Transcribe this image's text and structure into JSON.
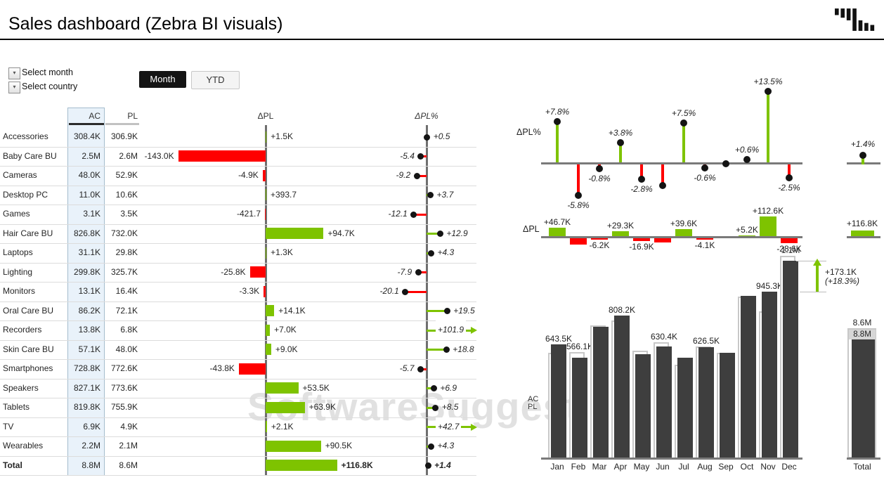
{
  "header": {
    "title": "Sales dashboard (Zebra BI visuals)"
  },
  "filters": [
    {
      "label": "Select month"
    },
    {
      "label": "Select country"
    }
  ],
  "view_toggle": {
    "options": [
      {
        "label": "Month",
        "selected": true
      },
      {
        "label": "YTD",
        "selected": false
      }
    ]
  },
  "watermark": "SoftwareSuggest",
  "colors": {
    "positive": "#7ec300",
    "negative": "#ff0000",
    "axis": "#6f6f6f",
    "ac_column": "#3e3e3e",
    "pl_outline": "#c8c8c8",
    "highlight_bg": "#e9f2fa",
    "highlight_border": "#a4bccd"
  },
  "chart_data": [
    {
      "id": "category-matrix",
      "type": "table",
      "columns": {
        "category": "",
        "ac": "AC",
        "pl": "PL",
        "dpl": "ΔPL",
        "dplpct": "ΔPL%"
      },
      "rows": [
        {
          "category": "Accessories",
          "ac": "308.4K",
          "pl": "306.9K",
          "dpl_label": "+1.5K",
          "dpl_k": 1.5,
          "dplpct_label": "+0.5",
          "dplpct": 0.5
        },
        {
          "category": "Baby Care BU",
          "ac": "2.5M",
          "pl": "2.6M",
          "dpl_label": "-143.0K",
          "dpl_k": -143.0,
          "dplpct_label": "-5.4",
          "dplpct": -5.4
        },
        {
          "category": "Cameras",
          "ac": "48.0K",
          "pl": "52.9K",
          "dpl_label": "-4.9K",
          "dpl_k": -4.9,
          "dplpct_label": "-9.2",
          "dplpct": -9.2
        },
        {
          "category": "Desktop PC",
          "ac": "11.0K",
          "pl": "10.6K",
          "dpl_label": "+393.7",
          "dpl_k": 0.3937,
          "dplpct_label": "+3.7",
          "dplpct": 3.7
        },
        {
          "category": "Games",
          "ac": "3.1K",
          "pl": "3.5K",
          "dpl_label": "-421.7",
          "dpl_k": -0.4217,
          "dplpct_label": "-12.1",
          "dplpct": -12.1
        },
        {
          "category": "Hair Care BU",
          "ac": "826.8K",
          "pl": "732.0K",
          "dpl_label": "+94.7K",
          "dpl_k": 94.7,
          "dplpct_label": "+12.9",
          "dplpct": 12.9
        },
        {
          "category": "Laptops",
          "ac": "31.1K",
          "pl": "29.8K",
          "dpl_label": "+1.3K",
          "dpl_k": 1.3,
          "dplpct_label": "+4.3",
          "dplpct": 4.3
        },
        {
          "category": "Lighting",
          "ac": "299.8K",
          "pl": "325.7K",
          "dpl_label": "-25.8K",
          "dpl_k": -25.8,
          "dplpct_label": "-7.9",
          "dplpct": -7.9
        },
        {
          "category": "Monitors",
          "ac": "13.1K",
          "pl": "16.4K",
          "dpl_label": "-3.3K",
          "dpl_k": -3.3,
          "dplpct_label": "-20.1",
          "dplpct": -20.1
        },
        {
          "category": "Oral Care BU",
          "ac": "86.2K",
          "pl": "72.1K",
          "dpl_label": "+14.1K",
          "dpl_k": 14.1,
          "dplpct_label": "+19.5",
          "dplpct": 19.5
        },
        {
          "category": "Recorders",
          "ac": "13.8K",
          "pl": "6.8K",
          "dpl_label": "+7.0K",
          "dpl_k": 7.0,
          "dplpct_label": "+101.9",
          "dplpct": 101.9,
          "overflow_arrow": true
        },
        {
          "category": "Skin Care BU",
          "ac": "57.1K",
          "pl": "48.0K",
          "dpl_label": "+9.0K",
          "dpl_k": 9.0,
          "dplpct_label": "+18.8",
          "dplpct": 18.8
        },
        {
          "category": "Smartphones",
          "ac": "728.8K",
          "pl": "772.6K",
          "dpl_label": "-43.8K",
          "dpl_k": -43.8,
          "dplpct_label": "-5.7",
          "dplpct": -5.7
        },
        {
          "category": "Speakers",
          "ac": "827.1K",
          "pl": "773.6K",
          "dpl_label": "+53.5K",
          "dpl_k": 53.5,
          "dplpct_label": "+6.9",
          "dplpct": 6.9
        },
        {
          "category": "Tablets",
          "ac": "819.8K",
          "pl": "755.9K",
          "dpl_label": "+63.9K",
          "dpl_k": 63.9,
          "dplpct_label": "+8.5",
          "dplpct": 8.5
        },
        {
          "category": "TV",
          "ac": "6.9K",
          "pl": "4.9K",
          "dpl_label": "+2.1K",
          "dpl_k": 2.1,
          "dplpct_label": "+42.7",
          "dplpct": 42.7,
          "overflow_arrow": true
        },
        {
          "category": "Wearables",
          "ac": "2.2M",
          "pl": "2.1M",
          "dpl_label": "+90.5K",
          "dpl_k": 90.5,
          "dplpct_label": "+4.3",
          "dplpct": 4.3
        },
        {
          "category": "Total",
          "ac": "8.8M",
          "pl": "8.6M",
          "dpl_label": "+116.8K",
          "dpl_k": 116.8,
          "dplpct_label": "+1.4",
          "dplpct": 1.4,
          "bold": true
        }
      ]
    },
    {
      "id": "monthly-dplpct",
      "type": "lollipop",
      "title": "ΔPL%",
      "categories": [
        "Jan",
        "Feb",
        "Mar",
        "Apr",
        "May",
        "Jun",
        "Jul",
        "Aug",
        "Sep",
        "Oct",
        "Nov",
        "Dec"
      ],
      "labels": [
        "+7.8%",
        "-5.8%",
        "-0.8%",
        "+3.8%",
        "-2.8%",
        "",
        "+7.5%",
        "-0.6%",
        "",
        "+0.6%",
        "+13.5%",
        "-2.5%"
      ],
      "values": [
        7.8,
        -5.8,
        -0.8,
        3.8,
        -2.8,
        -4.0,
        7.5,
        -0.6,
        0,
        0.6,
        13.5,
        -2.5
      ],
      "total": {
        "label": "+1.4%",
        "value": 1.4
      }
    },
    {
      "id": "monthly-dpl",
      "type": "bar",
      "title": "ΔPL",
      "labels": [
        "+46.7K",
        "",
        "-6.2K",
        "+29.3K",
        "-16.9K",
        "",
        "+39.6K",
        "-4.1K",
        "",
        "+5.2K",
        "+112.6K",
        "-28.6K"
      ],
      "values_k": [
        46.7,
        -35,
        -6.2,
        29.3,
        -16.9,
        -25,
        39.6,
        -4.1,
        0,
        5.2,
        112.6,
        -28.6
      ],
      "total": {
        "label": "+116.8K",
        "value_k": 116.8
      }
    },
    {
      "id": "monthly-acpl",
      "type": "column",
      "legend": [
        "AC",
        "PL"
      ],
      "labels": [
        "643.5K",
        "566.1K",
        "",
        "808.2K",
        "",
        "630.4K",
        "",
        "626.5K",
        "",
        "",
        "945.3K",
        "1.1M"
      ],
      "ac_k": [
        643.5,
        566.1,
        746,
        808.2,
        590,
        630.4,
        567,
        626.5,
        598,
        922,
        945.3,
        1118.4
      ],
      "pl_k": [
        596.8,
        601.1,
        752.2,
        778.9,
        606.9,
        655.4,
        527.4,
        630.6,
        598,
        916.8,
        832.7,
        1147
      ],
      "annotation": {
        "delta": "+173.1K",
        "pct": "(+18.3%)"
      },
      "total": {
        "ac_label": "8.8M",
        "pl_label": "8.6M",
        "axis_label": "Total"
      }
    }
  ]
}
